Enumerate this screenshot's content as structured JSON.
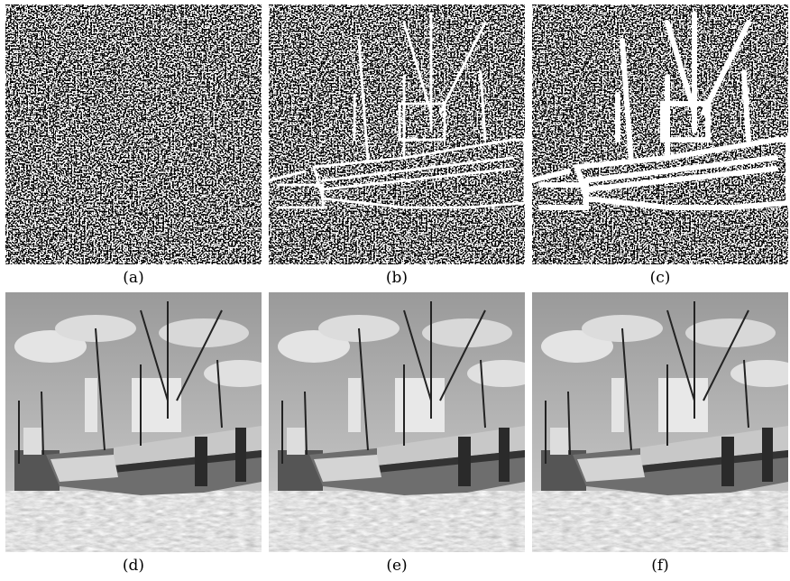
{
  "panels": [
    {
      "caption": "(a)"
    },
    {
      "caption": "(b)"
    },
    {
      "caption": "(c)"
    },
    {
      "caption": "(d)"
    },
    {
      "caption": "(e)"
    },
    {
      "caption": "(f)"
    }
  ]
}
